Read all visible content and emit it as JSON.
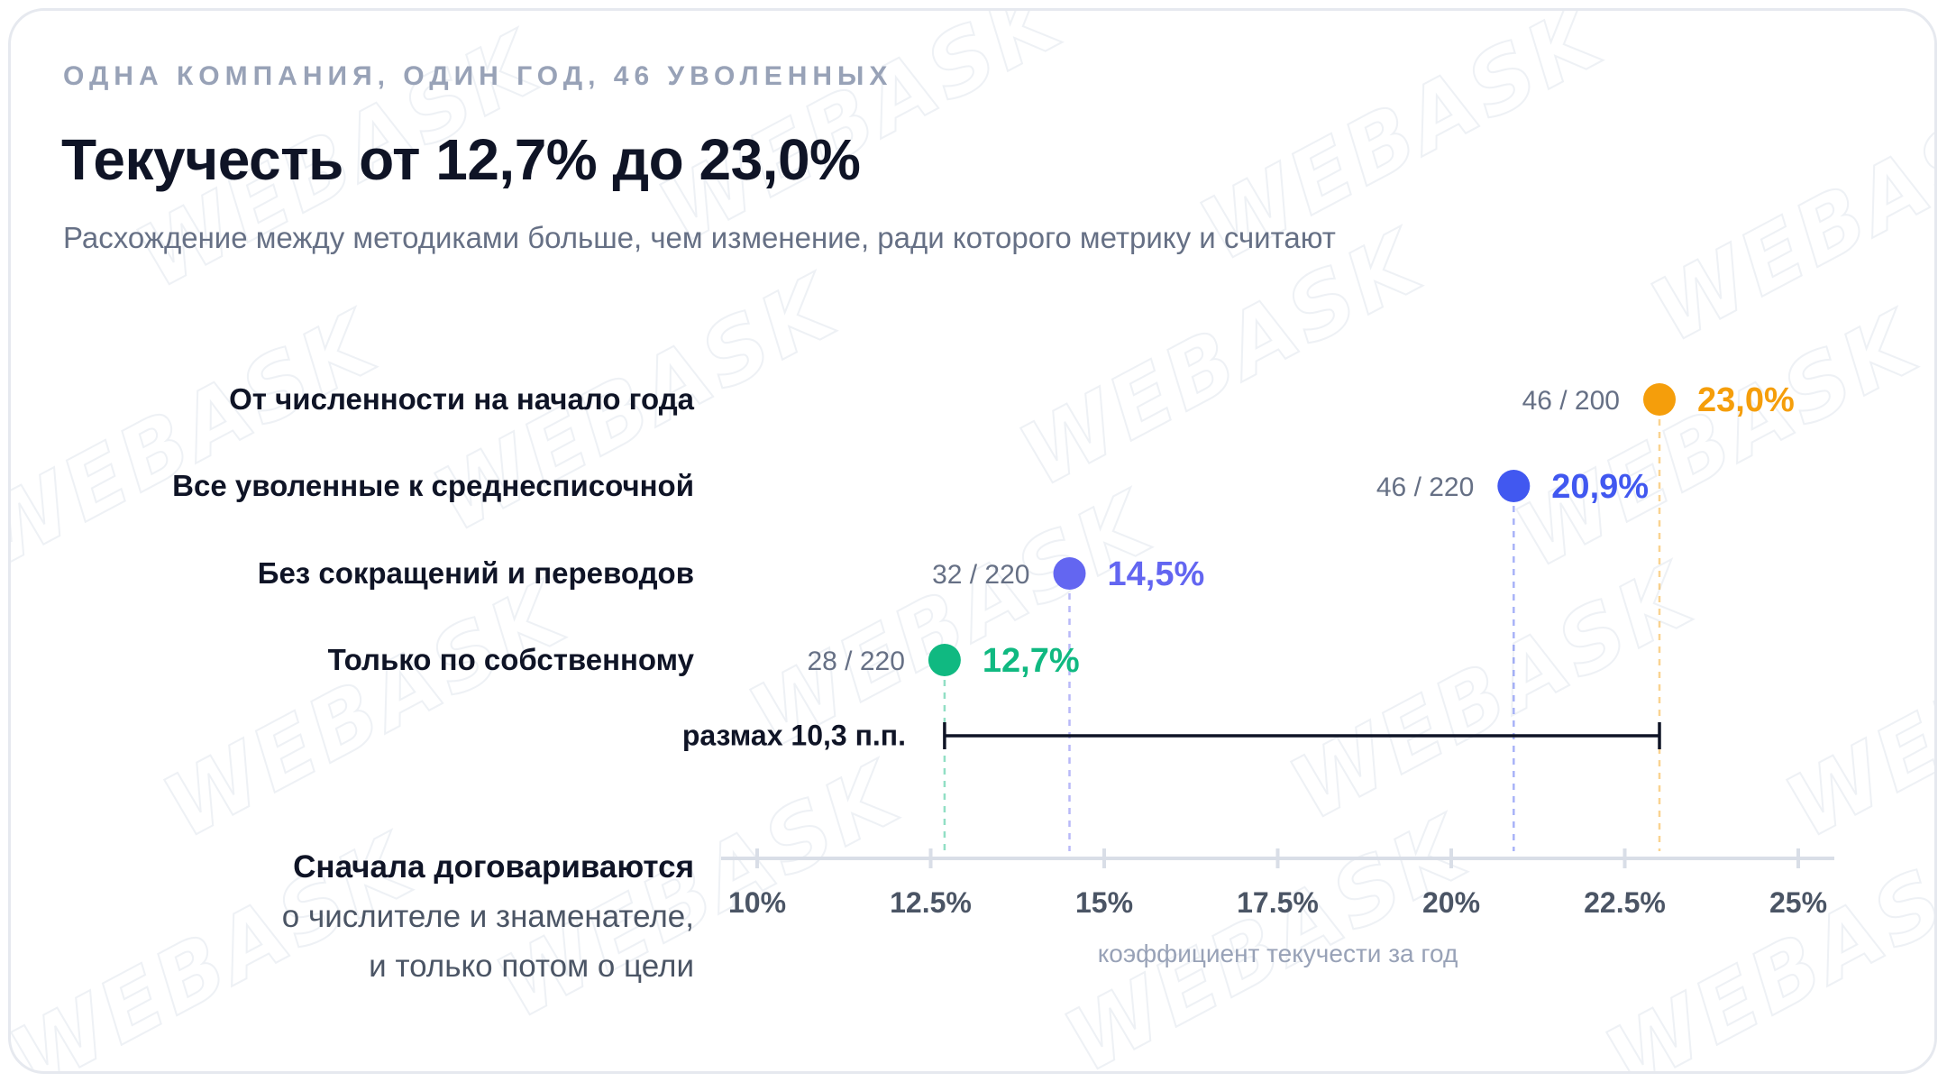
{
  "eyebrow": "ОДНА КОМПАНИЯ, ОДИН ГОД, 46 УВОЛЕННЫХ",
  "title": "Текучесть от 12,7% до 23,0%",
  "subtitle": "Расхождение между методиками больше, чем изменение, ради которого метрику и считают",
  "range_label": "размах 10,3 п.п.",
  "note": {
    "line1": "Сначала договариваются",
    "line2": "о числителе и знаменателе,",
    "line3": "и только потом о цели"
  },
  "watermark_text": "WEBASK",
  "chart_data": {
    "type": "dot",
    "xlabel": "коэффициент текучести за год",
    "xlim": [
      10,
      25
    ],
    "x_ticks": [
      10,
      12.5,
      15,
      17.5,
      20,
      22.5,
      25
    ],
    "x_tick_labels": [
      "10%",
      "12.5%",
      "15%",
      "17.5%",
      "20%",
      "22.5%",
      "25%"
    ],
    "points": [
      {
        "category": "От численности на начало года",
        "value": 23.0,
        "value_label": "23,0%",
        "fraction": "46 / 200",
        "color": "#f59e0b"
      },
      {
        "category": "Все уволенные к среднесписочной",
        "value": 20.9,
        "value_label": "20,9%",
        "fraction": "46 / 220",
        "color": "#4158f0"
      },
      {
        "category": "Без сокращений и переводов",
        "value": 14.5,
        "value_label": "14,5%",
        "fraction": "32 / 220",
        "color": "#6366f1"
      },
      {
        "category": "Только по собственному",
        "value": 12.7,
        "value_label": "12,7%",
        "fraction": "28 / 220",
        "color": "#10b981"
      }
    ],
    "range": {
      "from": 12.7,
      "to": 23.0
    },
    "axis_color": "#d9dee7",
    "text_dark": "#0f1426"
  }
}
